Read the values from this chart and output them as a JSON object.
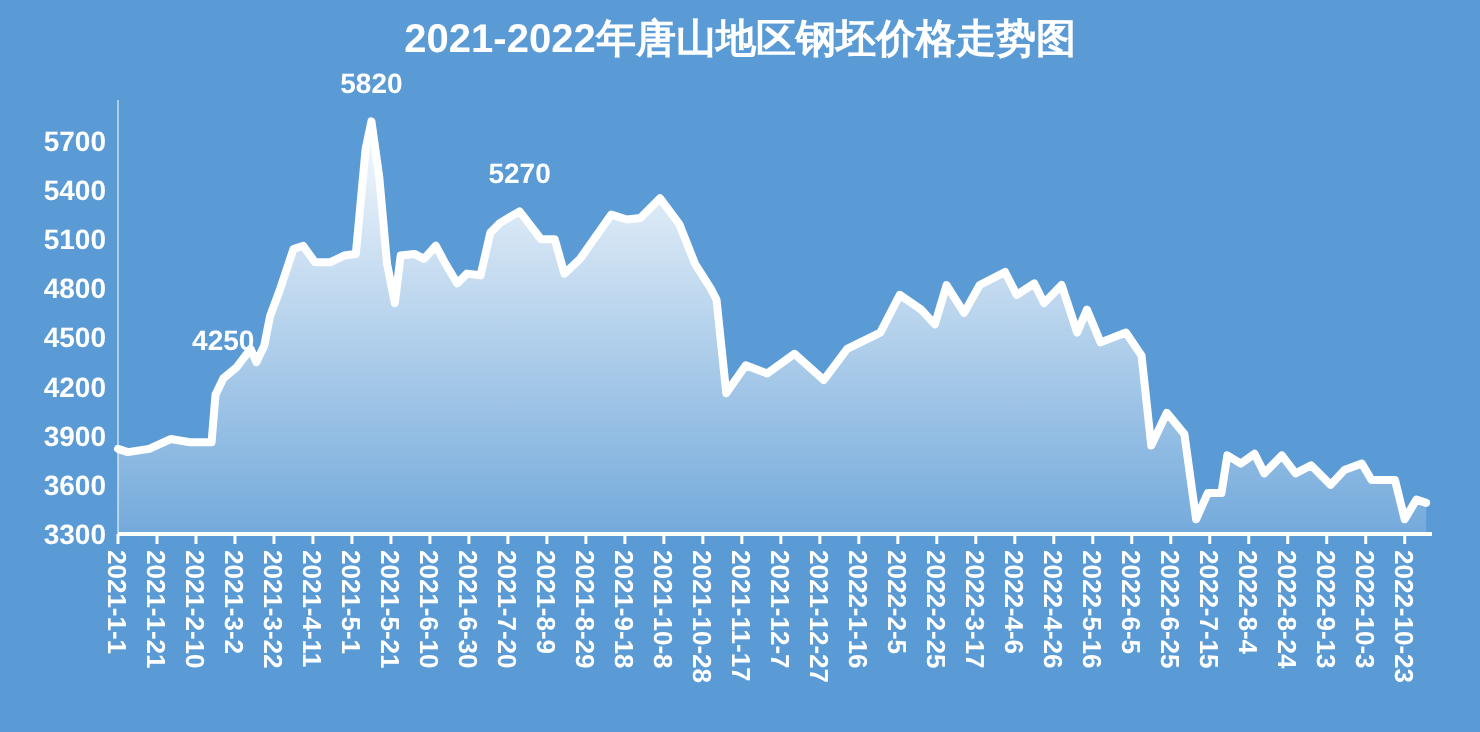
{
  "chart_data": {
    "type": "area",
    "title": "2021-2022年唐山地区钢坯价格走势图",
    "series": [
      {
        "color": "#ffffff",
        "x": [
          "2021-01-01",
          "2021-01-06",
          "2021-01-17",
          "2021-01-28",
          "2021-02-07",
          "2021-02-18",
          "2021-02-20",
          "2021-02-24",
          "2021-03-03",
          "2021-03-10",
          "2021-03-13",
          "2021-03-17",
          "2021-03-20",
          "2021-03-25",
          "2021-04-01",
          "2021-04-06",
          "2021-04-12",
          "2021-04-20",
          "2021-04-27",
          "2021-05-03",
          "2021-05-08",
          "2021-05-11",
          "2021-05-15",
          "2021-05-19",
          "2021-05-23",
          "2021-05-26",
          "2021-06-02",
          "2021-06-07",
          "2021-06-13",
          "2021-06-18",
          "2021-06-24",
          "2021-06-29",
          "2021-07-06",
          "2021-07-11",
          "2021-07-16",
          "2021-07-26",
          "2021-08-06",
          "2021-08-13",
          "2021-08-18",
          "2021-08-26",
          "2021-09-11",
          "2021-09-19",
          "2021-09-26",
          "2021-10-06",
          "2021-10-16",
          "2021-10-24",
          "2021-11-01",
          "2021-11-04",
          "2021-11-09",
          "2021-11-19",
          "2021-11-30",
          "2021-12-14",
          "2021-12-29",
          "2022-01-10",
          "2022-01-27",
          "2022-02-06",
          "2022-02-17",
          "2022-02-24",
          "2022-03-02",
          "2022-03-11",
          "2022-03-19",
          "2022-04-01",
          "2022-04-07",
          "2022-04-16",
          "2022-04-21",
          "2022-04-30",
          "2022-05-08",
          "2022-05-13",
          "2022-05-20",
          "2022-06-02",
          "2022-06-10",
          "2022-06-15",
          "2022-06-23",
          "2022-07-02",
          "2022-07-08",
          "2022-07-14",
          "2022-07-21",
          "2022-07-24",
          "2022-07-31",
          "2022-08-07",
          "2022-08-12",
          "2022-08-21",
          "2022-08-28",
          "2022-09-05",
          "2022-09-15",
          "2022-09-22",
          "2022-10-01",
          "2022-10-06",
          "2022-10-18",
          "2022-10-23",
          "2022-10-29",
          "2022-11-03"
        ],
        "values": [
          3820,
          3800,
          3820,
          3880,
          3860,
          3860,
          4150,
          4250,
          4320,
          4430,
          4350,
          4450,
          4630,
          4790,
          5040,
          5060,
          4960,
          4960,
          5000,
          5010,
          5650,
          5820,
          5480,
          4950,
          4710,
          5000,
          5010,
          4980,
          5060,
          4950,
          4830,
          4890,
          4880,
          5140,
          5200,
          5270,
          5100,
          5100,
          4890,
          4980,
          5250,
          5220,
          5230,
          5350,
          5190,
          4950,
          4800,
          4730,
          4160,
          4330,
          4280,
          4400,
          4240,
          4430,
          4530,
          4760,
          4670,
          4580,
          4820,
          4650,
          4820,
          4900,
          4760,
          4830,
          4710,
          4820,
          4530,
          4670,
          4470,
          4530,
          4390,
          3840,
          4040,
          3910,
          3390,
          3550,
          3550,
          3780,
          3730,
          3790,
          3670,
          3780,
          3670,
          3720,
          3600,
          3690,
          3730,
          3630,
          3630,
          3390,
          3510,
          3490
        ]
      }
    ],
    "annotations": [
      {
        "text": "5820",
        "x": "2021-05-11",
        "y": 5820
      },
      {
        "text": "4250",
        "x": "2021-02-24",
        "y": 4250
      },
      {
        "text": "5270",
        "x": "2021-07-26",
        "y": 5270
      }
    ],
    "xlim": [
      "2021-01-01",
      "2022-11-06"
    ],
    "ylim": [
      3300,
      5950
    ],
    "yticks": [
      3300,
      3600,
      3900,
      4200,
      4500,
      4800,
      5100,
      5400,
      5700
    ],
    "xticks": [
      {
        "value": "2021-01-01",
        "label": "2021-1-1"
      },
      {
        "value": "2021-01-21",
        "label": "2021-1-21"
      },
      {
        "value": "2021-02-10",
        "label": "2021-2-10"
      },
      {
        "value": "2021-03-02",
        "label": "2021-3-2"
      },
      {
        "value": "2021-03-22",
        "label": "2021-3-22"
      },
      {
        "value": "2021-04-11",
        "label": "2021-4-11"
      },
      {
        "value": "2021-05-01",
        "label": "2021-5-1"
      },
      {
        "value": "2021-05-21",
        "label": "2021-5-21"
      },
      {
        "value": "2021-06-10",
        "label": "2021-6-10"
      },
      {
        "value": "2021-06-30",
        "label": "2021-6-30"
      },
      {
        "value": "2021-07-20",
        "label": "2021-7-20"
      },
      {
        "value": "2021-08-09",
        "label": "2021-8-9"
      },
      {
        "value": "2021-08-29",
        "label": "2021-8-29"
      },
      {
        "value": "2021-09-18",
        "label": "2021-9-18"
      },
      {
        "value": "2021-10-08",
        "label": "2021-10-8"
      },
      {
        "value": "2021-10-28",
        "label": "2021-10-28"
      },
      {
        "value": "2021-11-17",
        "label": "2021-11-17"
      },
      {
        "value": "2021-12-07",
        "label": "2021-12-7"
      },
      {
        "value": "2021-12-27",
        "label": "2021-12-27"
      },
      {
        "value": "2022-01-16",
        "label": "2022-1-16"
      },
      {
        "value": "2022-02-05",
        "label": "2022-2-5"
      },
      {
        "value": "2022-02-25",
        "label": "2022-2-25"
      },
      {
        "value": "2022-03-17",
        "label": "2022-3-17"
      },
      {
        "value": "2022-04-06",
        "label": "2022-4-6"
      },
      {
        "value": "2022-04-26",
        "label": "2022-4-26"
      },
      {
        "value": "2022-05-16",
        "label": "2022-5-16"
      },
      {
        "value": "2022-06-05",
        "label": "2022-6-5"
      },
      {
        "value": "2022-06-25",
        "label": "2022-6-25"
      },
      {
        "value": "2022-07-15",
        "label": "2022-7-15"
      },
      {
        "value": "2022-08-04",
        "label": "2022-8-4"
      },
      {
        "value": "2022-08-24",
        "label": "2022-8-24"
      },
      {
        "value": "2022-09-13",
        "label": "2022-9-13"
      },
      {
        "value": "2022-10-03",
        "label": "2022-10-3"
      },
      {
        "value": "2022-10-23",
        "label": "2022-10-23"
      }
    ],
    "grid": false
  }
}
